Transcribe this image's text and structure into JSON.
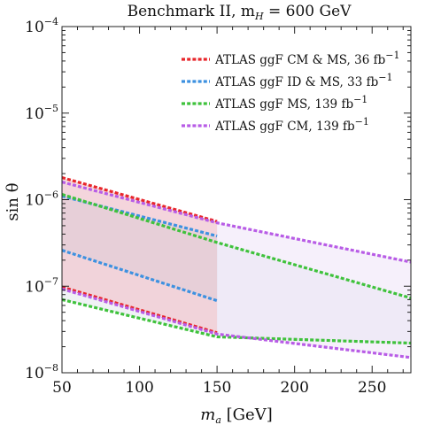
{
  "chart_data": {
    "type": "line",
    "title": "Benchmark II, m",
    "title_sub": "H",
    "title_tail": " = 600 GeV",
    "xlabel_main": "m",
    "xlabel_sub": "a",
    "xlabel_unit": "  [GeV]",
    "ylabel": "sin θ",
    "xlim": [
      50,
      275
    ],
    "ylim": [
      1e-08,
      0.0001
    ],
    "yscale": "log",
    "x_ticks": [
      50,
      100,
      150,
      200,
      250
    ],
    "x_tick_labels": [
      "50",
      "100",
      "150",
      "200",
      "250"
    ],
    "y_ticks": [
      {
        "value": 1e-08,
        "base": "10",
        "exp": "−8"
      },
      {
        "value": 1e-07,
        "base": "10",
        "exp": "−7"
      },
      {
        "value": 1e-06,
        "base": "10",
        "exp": "−6"
      },
      {
        "value": 1e-05,
        "base": "10",
        "exp": "−5"
      },
      {
        "value": 0.0001,
        "base": "10",
        "exp": "−4"
      }
    ],
    "legend_position": "top-right",
    "series": [
      {
        "name": "ATLAS ggF CM & MS, 36 fb",
        "name_sup": "−1",
        "color": "#e8262b",
        "fill": "#f2c0c3",
        "upper": [
          [
            50,
            1.8e-06
          ],
          [
            150,
            5.6e-07
          ]
        ],
        "lower": [
          [
            50,
            9.8e-08
          ],
          [
            150,
            2.9e-08
          ]
        ]
      },
      {
        "name": "ATLAS ggF ID & MS, 33 fb",
        "name_sup": "−1",
        "color": "#3d91e0",
        "fill": "#c9dcef",
        "upper": [
          [
            50,
            1.1e-06
          ],
          [
            150,
            3.8e-07
          ]
        ],
        "lower": [
          [
            50,
            2.6e-07
          ],
          [
            150,
            6.8e-08
          ]
        ]
      },
      {
        "name": "ATLAS ggF MS, 139 fb",
        "name_sup": "−1",
        "color": "#3fc23c",
        "fill": "#e4e8ec",
        "upper": [
          [
            50,
            1.15e-06
          ],
          [
            150,
            3.2e-07
          ],
          [
            275,
            7.3e-08
          ]
        ],
        "lower": [
          [
            50,
            7e-08
          ],
          [
            150,
            2.6e-08
          ],
          [
            275,
            2.2e-08
          ]
        ]
      },
      {
        "name": "ATLAS ggF CM, 139 fb",
        "name_sup": "−1",
        "color": "#b85ce6",
        "fill": "#efe4f8",
        "upper": [
          [
            50,
            1.6e-06
          ],
          [
            150,
            5.4e-07
          ],
          [
            275,
            1.9e-07
          ]
        ],
        "lower": [
          [
            50,
            9.3e-08
          ],
          [
            150,
            2.8e-08
          ],
          [
            275,
            1.5e-08
          ]
        ]
      }
    ]
  }
}
